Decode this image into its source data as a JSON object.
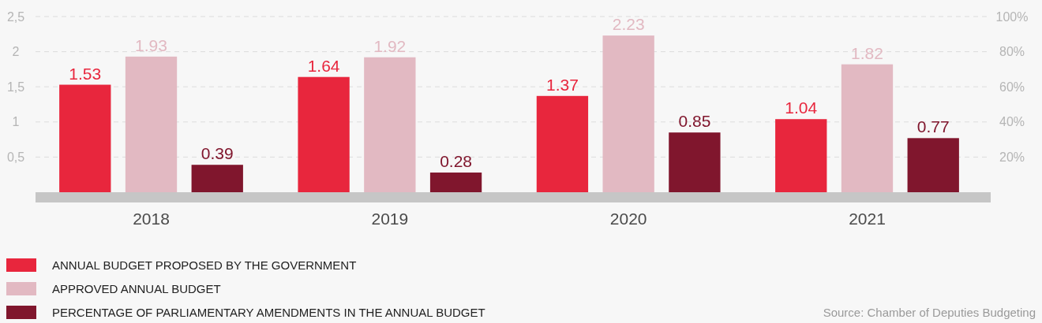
{
  "chart_data": {
    "type": "bar",
    "categories": [
      "2018",
      "2019",
      "2020",
      "2021"
    ],
    "series": [
      {
        "name": "ANNUAL BUDGET PROPOSED BY THE GOVERNMENT",
        "color": "#e8263d",
        "values": [
          1.53,
          1.64,
          1.37,
          1.04
        ]
      },
      {
        "name": "APPROVED ANNUAL BUDGET",
        "color": "#e2b9c2",
        "values": [
          1.93,
          1.92,
          2.23,
          1.82
        ]
      },
      {
        "name": "PERCENTAGE OF PARLIAMENTARY AMENDMENTS IN THE ANNUAL BUDGET",
        "color": "#80162d",
        "values": [
          0.39,
          0.28,
          0.85,
          0.77
        ]
      }
    ],
    "ylim": [
      0,
      2.5
    ],
    "yticks": [
      {
        "value": 0.5,
        "label": "0,5"
      },
      1,
      {
        "value": 1.5,
        "label": "1,5"
      },
      2,
      {
        "value": 2.5,
        "label": "2,5"
      }
    ],
    "y2lim": [
      0,
      100
    ],
    "y2ticks": [
      {
        "value": 20,
        "label": "20%"
      },
      {
        "value": 40,
        "label": "40%"
      },
      {
        "value": 60,
        "label": "60%"
      },
      {
        "value": 80,
        "label": "80%"
      },
      {
        "value": 100,
        "label": "100%"
      }
    ],
    "grid": "y",
    "legend": "bottom left",
    "data_labels": true,
    "annotations": [
      "Source: Chamber of Deputies Budgeting"
    ]
  }
}
